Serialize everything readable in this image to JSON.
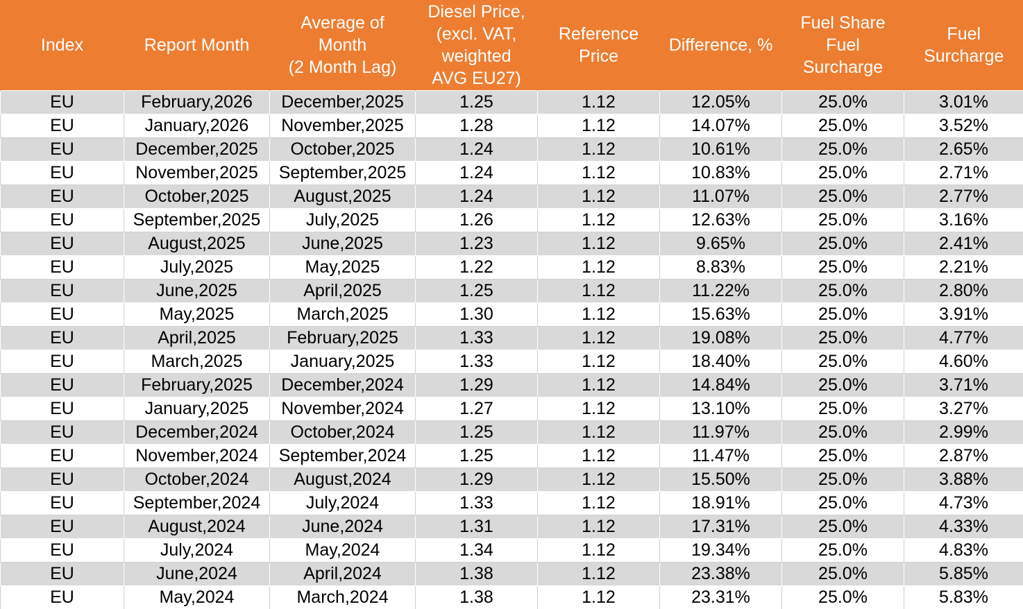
{
  "table": {
    "header": [
      "Index",
      "Report Month",
      "Average of\nMonth\n(2 Month Lag)",
      "Diesel Price,\n(excl. VAT,\nweighted\nAVG EU27)",
      "Reference\nPrice",
      "Difference, %",
      "Fuel Share\nFuel\nSurcharge",
      "Fuel\nSurcharge"
    ],
    "rows": [
      [
        "EU",
        "February,2026",
        "December,2025",
        "1.25",
        "1.12",
        "12.05%",
        "25.0%",
        "3.01%"
      ],
      [
        "EU",
        "January,2026",
        "November,2025",
        "1.28",
        "1.12",
        "14.07%",
        "25.0%",
        "3.52%"
      ],
      [
        "EU",
        "December,2025",
        "October,2025",
        "1.24",
        "1.12",
        "10.61%",
        "25.0%",
        "2.65%"
      ],
      [
        "EU",
        "November,2025",
        "September,2025",
        "1.24",
        "1.12",
        "10.83%",
        "25.0%",
        "2.71%"
      ],
      [
        "EU",
        "October,2025",
        "August,2025",
        "1.24",
        "1.12",
        "11.07%",
        "25.0%",
        "2.77%"
      ],
      [
        "EU",
        "September,2025",
        "July,2025",
        "1.26",
        "1.12",
        "12.63%",
        "25.0%",
        "3.16%"
      ],
      [
        "EU",
        "August,2025",
        "June,2025",
        "1.23",
        "1.12",
        "9.65%",
        "25.0%",
        "2.41%"
      ],
      [
        "EU",
        "July,2025",
        "May,2025",
        "1.22",
        "1.12",
        "8.83%",
        "25.0%",
        "2.21%"
      ],
      [
        "EU",
        "June,2025",
        "April,2025",
        "1.25",
        "1.12",
        "11.22%",
        "25.0%",
        "2.80%"
      ],
      [
        "EU",
        "May,2025",
        "March,2025",
        "1.30",
        "1.12",
        "15.63%",
        "25.0%",
        "3.91%"
      ],
      [
        "EU",
        "April,2025",
        "February,2025",
        "1.33",
        "1.12",
        "19.08%",
        "25.0%",
        "4.77%"
      ],
      [
        "EU",
        "March,2025",
        "January,2025",
        "1.33",
        "1.12",
        "18.40%",
        "25.0%",
        "4.60%"
      ],
      [
        "EU",
        "February,2025",
        "December,2024",
        "1.29",
        "1.12",
        "14.84%",
        "25.0%",
        "3.71%"
      ],
      [
        "EU",
        "January,2025",
        "November,2024",
        "1.27",
        "1.12",
        "13.10%",
        "25.0%",
        "3.27%"
      ],
      [
        "EU",
        "December,2024",
        "October,2024",
        "1.25",
        "1.12",
        "11.97%",
        "25.0%",
        "2.99%"
      ],
      [
        "EU",
        "November,2024",
        "September,2024",
        "1.25",
        "1.12",
        "11.47%",
        "25.0%",
        "2.87%"
      ],
      [
        "EU",
        "October,2024",
        "August,2024",
        "1.29",
        "1.12",
        "15.50%",
        "25.0%",
        "3.88%"
      ],
      [
        "EU",
        "September,2024",
        "July,2024",
        "1.33",
        "1.12",
        "18.91%",
        "25.0%",
        "4.73%"
      ],
      [
        "EU",
        "August,2024",
        "June,2024",
        "1.31",
        "1.12",
        "17.31%",
        "25.0%",
        "4.33%"
      ],
      [
        "EU",
        "July,2024",
        "May,2024",
        "1.34",
        "1.12",
        "19.34%",
        "25.0%",
        "4.83%"
      ],
      [
        "EU",
        "June,2024",
        "April,2024",
        "1.38",
        "1.12",
        "23.38%",
        "25.0%",
        "5.85%"
      ],
      [
        "EU",
        "May,2024",
        "March,2024",
        "1.38",
        "1.12",
        "23.31%",
        "25.0%",
        "5.83%"
      ]
    ]
  }
}
